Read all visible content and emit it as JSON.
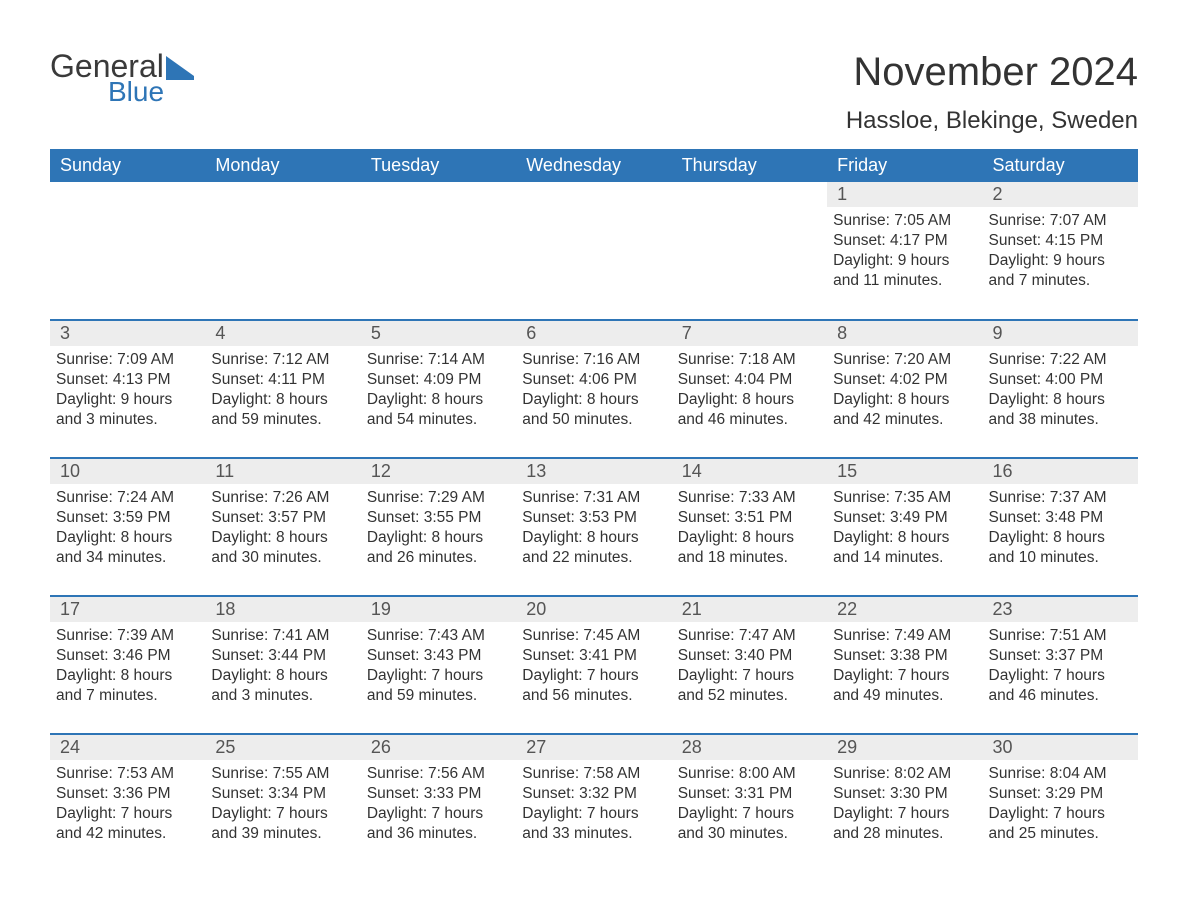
{
  "logo": {
    "line1": "General",
    "line2": "Blue"
  },
  "title": "November 2024",
  "location": "Hassloe, Blekinge, Sweden",
  "colors": {
    "header_bg": "#2e75b6",
    "header_text": "#ffffff",
    "daynum_bg": "#ededed",
    "row_border": "#2e75b6",
    "body_text": "#333333",
    "logo_blue": "#2e75b6"
  },
  "weekdays": [
    "Sunday",
    "Monday",
    "Tuesday",
    "Wednesday",
    "Thursday",
    "Friday",
    "Saturday"
  ],
  "weeks": [
    [
      {
        "empty": true
      },
      {
        "empty": true
      },
      {
        "empty": true
      },
      {
        "empty": true
      },
      {
        "empty": true
      },
      {
        "day": "1",
        "sunrise": "Sunrise: 7:05 AM",
        "sunset": "Sunset: 4:17 PM",
        "daylight1": "Daylight: 9 hours",
        "daylight2": "and 11 minutes."
      },
      {
        "day": "2",
        "sunrise": "Sunrise: 7:07 AM",
        "sunset": "Sunset: 4:15 PM",
        "daylight1": "Daylight: 9 hours",
        "daylight2": "and 7 minutes."
      }
    ],
    [
      {
        "day": "3",
        "sunrise": "Sunrise: 7:09 AM",
        "sunset": "Sunset: 4:13 PM",
        "daylight1": "Daylight: 9 hours",
        "daylight2": "and 3 minutes."
      },
      {
        "day": "4",
        "sunrise": "Sunrise: 7:12 AM",
        "sunset": "Sunset: 4:11 PM",
        "daylight1": "Daylight: 8 hours",
        "daylight2": "and 59 minutes."
      },
      {
        "day": "5",
        "sunrise": "Sunrise: 7:14 AM",
        "sunset": "Sunset: 4:09 PM",
        "daylight1": "Daylight: 8 hours",
        "daylight2": "and 54 minutes."
      },
      {
        "day": "6",
        "sunrise": "Sunrise: 7:16 AM",
        "sunset": "Sunset: 4:06 PM",
        "daylight1": "Daylight: 8 hours",
        "daylight2": "and 50 minutes."
      },
      {
        "day": "7",
        "sunrise": "Sunrise: 7:18 AM",
        "sunset": "Sunset: 4:04 PM",
        "daylight1": "Daylight: 8 hours",
        "daylight2": "and 46 minutes."
      },
      {
        "day": "8",
        "sunrise": "Sunrise: 7:20 AM",
        "sunset": "Sunset: 4:02 PM",
        "daylight1": "Daylight: 8 hours",
        "daylight2": "and 42 minutes."
      },
      {
        "day": "9",
        "sunrise": "Sunrise: 7:22 AM",
        "sunset": "Sunset: 4:00 PM",
        "daylight1": "Daylight: 8 hours",
        "daylight2": "and 38 minutes."
      }
    ],
    [
      {
        "day": "10",
        "sunrise": "Sunrise: 7:24 AM",
        "sunset": "Sunset: 3:59 PM",
        "daylight1": "Daylight: 8 hours",
        "daylight2": "and 34 minutes."
      },
      {
        "day": "11",
        "sunrise": "Sunrise: 7:26 AM",
        "sunset": "Sunset: 3:57 PM",
        "daylight1": "Daylight: 8 hours",
        "daylight2": "and 30 minutes."
      },
      {
        "day": "12",
        "sunrise": "Sunrise: 7:29 AM",
        "sunset": "Sunset: 3:55 PM",
        "daylight1": "Daylight: 8 hours",
        "daylight2": "and 26 minutes."
      },
      {
        "day": "13",
        "sunrise": "Sunrise: 7:31 AM",
        "sunset": "Sunset: 3:53 PM",
        "daylight1": "Daylight: 8 hours",
        "daylight2": "and 22 minutes."
      },
      {
        "day": "14",
        "sunrise": "Sunrise: 7:33 AM",
        "sunset": "Sunset: 3:51 PM",
        "daylight1": "Daylight: 8 hours",
        "daylight2": "and 18 minutes."
      },
      {
        "day": "15",
        "sunrise": "Sunrise: 7:35 AM",
        "sunset": "Sunset: 3:49 PM",
        "daylight1": "Daylight: 8 hours",
        "daylight2": "and 14 minutes."
      },
      {
        "day": "16",
        "sunrise": "Sunrise: 7:37 AM",
        "sunset": "Sunset: 3:48 PM",
        "daylight1": "Daylight: 8 hours",
        "daylight2": "and 10 minutes."
      }
    ],
    [
      {
        "day": "17",
        "sunrise": "Sunrise: 7:39 AM",
        "sunset": "Sunset: 3:46 PM",
        "daylight1": "Daylight: 8 hours",
        "daylight2": "and 7 minutes."
      },
      {
        "day": "18",
        "sunrise": "Sunrise: 7:41 AM",
        "sunset": "Sunset: 3:44 PM",
        "daylight1": "Daylight: 8 hours",
        "daylight2": "and 3 minutes."
      },
      {
        "day": "19",
        "sunrise": "Sunrise: 7:43 AM",
        "sunset": "Sunset: 3:43 PM",
        "daylight1": "Daylight: 7 hours",
        "daylight2": "and 59 minutes."
      },
      {
        "day": "20",
        "sunrise": "Sunrise: 7:45 AM",
        "sunset": "Sunset: 3:41 PM",
        "daylight1": "Daylight: 7 hours",
        "daylight2": "and 56 minutes."
      },
      {
        "day": "21",
        "sunrise": "Sunrise: 7:47 AM",
        "sunset": "Sunset: 3:40 PM",
        "daylight1": "Daylight: 7 hours",
        "daylight2": "and 52 minutes."
      },
      {
        "day": "22",
        "sunrise": "Sunrise: 7:49 AM",
        "sunset": "Sunset: 3:38 PM",
        "daylight1": "Daylight: 7 hours",
        "daylight2": "and 49 minutes."
      },
      {
        "day": "23",
        "sunrise": "Sunrise: 7:51 AM",
        "sunset": "Sunset: 3:37 PM",
        "daylight1": "Daylight: 7 hours",
        "daylight2": "and 46 minutes."
      }
    ],
    [
      {
        "day": "24",
        "sunrise": "Sunrise: 7:53 AM",
        "sunset": "Sunset: 3:36 PM",
        "daylight1": "Daylight: 7 hours",
        "daylight2": "and 42 minutes."
      },
      {
        "day": "25",
        "sunrise": "Sunrise: 7:55 AM",
        "sunset": "Sunset: 3:34 PM",
        "daylight1": "Daylight: 7 hours",
        "daylight2": "and 39 minutes."
      },
      {
        "day": "26",
        "sunrise": "Sunrise: 7:56 AM",
        "sunset": "Sunset: 3:33 PM",
        "daylight1": "Daylight: 7 hours",
        "daylight2": "and 36 minutes."
      },
      {
        "day": "27",
        "sunrise": "Sunrise: 7:58 AM",
        "sunset": "Sunset: 3:32 PM",
        "daylight1": "Daylight: 7 hours",
        "daylight2": "and 33 minutes."
      },
      {
        "day": "28",
        "sunrise": "Sunrise: 8:00 AM",
        "sunset": "Sunset: 3:31 PM",
        "daylight1": "Daylight: 7 hours",
        "daylight2": "and 30 minutes."
      },
      {
        "day": "29",
        "sunrise": "Sunrise: 8:02 AM",
        "sunset": "Sunset: 3:30 PM",
        "daylight1": "Daylight: 7 hours",
        "daylight2": "and 28 minutes."
      },
      {
        "day": "30",
        "sunrise": "Sunrise: 8:04 AM",
        "sunset": "Sunset: 3:29 PM",
        "daylight1": "Daylight: 7 hours",
        "daylight2": "and 25 minutes."
      }
    ]
  ]
}
